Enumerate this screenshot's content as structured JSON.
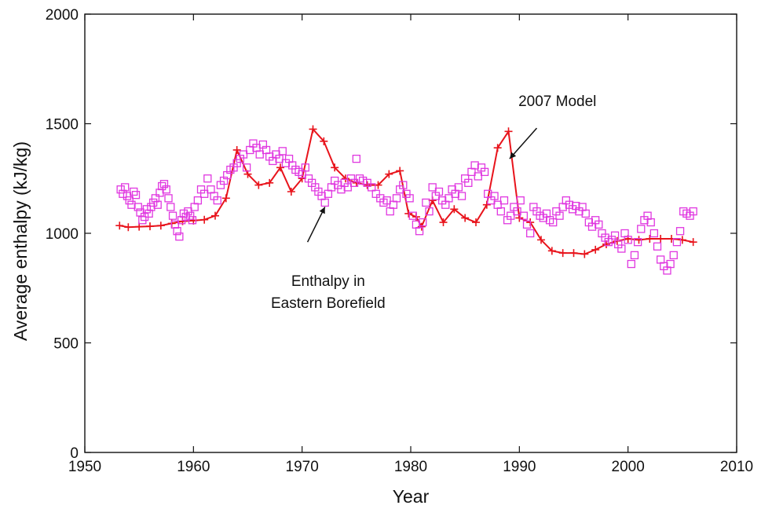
{
  "chart_data": {
    "type": "line",
    "title": "",
    "xlabel": "Year",
    "ylabel": "Average enthalpy (kJ/kg)",
    "xlim": [
      1950,
      2010
    ],
    "ylim": [
      0,
      2000
    ],
    "x_ticks": [
      1950,
      1960,
      1970,
      1980,
      1990,
      2000,
      2010
    ],
    "y_ticks": [
      0,
      500,
      1000,
      1500,
      2000
    ],
    "x_tick_labels": [
      "1950",
      "1960",
      "1970",
      "1980",
      "1990",
      "2000",
      "2010"
    ],
    "y_tick_labels": [
      "0",
      "500",
      "1000",
      "1500",
      "2000"
    ],
    "grid": false,
    "legend": "none",
    "series": [
      {
        "marker": "cross",
        "line": true,
        "color": "#e8131b",
        "points": [
          [
            1953.2,
            1035
          ],
          [
            1954,
            1028
          ],
          [
            1955,
            1030
          ],
          [
            1956,
            1032
          ],
          [
            1957,
            1035
          ],
          [
            1958,
            1045
          ],
          [
            1959,
            1055
          ],
          [
            1960,
            1058
          ],
          [
            1961,
            1062
          ],
          [
            1962,
            1080
          ],
          [
            1963,
            1160
          ],
          [
            1964,
            1380
          ],
          [
            1965,
            1270
          ],
          [
            1966,
            1220
          ],
          [
            1967,
            1230
          ],
          [
            1968,
            1300
          ],
          [
            1969,
            1190
          ],
          [
            1970,
            1250
          ],
          [
            1971,
            1475
          ],
          [
            1972,
            1420
          ],
          [
            1973,
            1300
          ],
          [
            1974,
            1250
          ],
          [
            1975,
            1230
          ],
          [
            1976,
            1220
          ],
          [
            1977,
            1220
          ],
          [
            1978,
            1270
          ],
          [
            1979,
            1285
          ],
          [
            1979.8,
            1090
          ],
          [
            1980.5,
            1075
          ],
          [
            1981,
            1030
          ],
          [
            1982,
            1150
          ],
          [
            1983,
            1050
          ],
          [
            1984,
            1110
          ],
          [
            1985,
            1070
          ],
          [
            1986,
            1050
          ],
          [
            1987,
            1130
          ],
          [
            1988,
            1390
          ],
          [
            1989,
            1465
          ],
          [
            1990,
            1070
          ],
          [
            1991,
            1050
          ],
          [
            1992,
            970
          ],
          [
            1993,
            920
          ],
          [
            1994,
            910
          ],
          [
            1995,
            910
          ],
          [
            1996,
            905
          ],
          [
            1997,
            925
          ],
          [
            1998,
            950
          ],
          [
            1999,
            965
          ],
          [
            2000,
            975
          ],
          [
            2001,
            970
          ],
          [
            2002,
            975
          ],
          [
            2003,
            975
          ],
          [
            2004,
            975
          ],
          [
            2005,
            970
          ],
          [
            2006,
            960
          ]
        ]
      },
      {
        "marker": "open-square",
        "line": false,
        "color": "#e038e0",
        "points": [
          [
            1953.3,
            1200
          ],
          [
            1953.5,
            1180
          ],
          [
            1953.7,
            1210
          ],
          [
            1953.9,
            1170
          ],
          [
            1954.1,
            1150
          ],
          [
            1954.3,
            1130
          ],
          [
            1954.5,
            1190
          ],
          [
            1954.7,
            1175
          ],
          [
            1954.9,
            1120
          ],
          [
            1955.1,
            1095
          ],
          [
            1955.3,
            1060
          ],
          [
            1955.5,
            1075
          ],
          [
            1955.7,
            1110
          ],
          [
            1955.9,
            1090
          ],
          [
            1956.1,
            1120
          ],
          [
            1956.3,
            1140
          ],
          [
            1956.5,
            1160
          ],
          [
            1956.7,
            1130
          ],
          [
            1956.9,
            1185
          ],
          [
            1957.1,
            1215
          ],
          [
            1957.3,
            1225
          ],
          [
            1957.5,
            1200
          ],
          [
            1957.7,
            1160
          ],
          [
            1957.9,
            1120
          ],
          [
            1958.1,
            1080
          ],
          [
            1958.3,
            1040
          ],
          [
            1958.5,
            1010
          ],
          [
            1958.7,
            985
          ],
          [
            1958.9,
            1060
          ],
          [
            1959.1,
            1090
          ],
          [
            1959.3,
            1075
          ],
          [
            1959.5,
            1100
          ],
          [
            1959.7,
            1080
          ],
          [
            1959.9,
            1060
          ],
          [
            1960.1,
            1120
          ],
          [
            1960.4,
            1150
          ],
          [
            1960.7,
            1200
          ],
          [
            1961,
            1180
          ],
          [
            1961.3,
            1250
          ],
          [
            1961.6,
            1200
          ],
          [
            1961.9,
            1170
          ],
          [
            1962.2,
            1150
          ],
          [
            1962.5,
            1220
          ],
          [
            1962.8,
            1240
          ],
          [
            1963.1,
            1265
          ],
          [
            1963.4,
            1290
          ],
          [
            1963.7,
            1300
          ],
          [
            1964,
            1320
          ],
          [
            1964.3,
            1340
          ],
          [
            1964.6,
            1360
          ],
          [
            1964.9,
            1300
          ],
          [
            1965.2,
            1380
          ],
          [
            1965.5,
            1410
          ],
          [
            1965.8,
            1390
          ],
          [
            1966.1,
            1360
          ],
          [
            1966.4,
            1405
          ],
          [
            1966.7,
            1380
          ],
          [
            1967,
            1350
          ],
          [
            1967.3,
            1330
          ],
          [
            1967.6,
            1360
          ],
          [
            1967.9,
            1340
          ],
          [
            1968.2,
            1375
          ],
          [
            1968.5,
            1320
          ],
          [
            1968.8,
            1340
          ],
          [
            1969.1,
            1310
          ],
          [
            1969.4,
            1290
          ],
          [
            1969.7,
            1280
          ],
          [
            1970,
            1270
          ],
          [
            1970.3,
            1300
          ],
          [
            1970.6,
            1250
          ],
          [
            1970.9,
            1230
          ],
          [
            1971.2,
            1210
          ],
          [
            1971.5,
            1190
          ],
          [
            1971.8,
            1170
          ],
          [
            1972.1,
            1140
          ],
          [
            1972.4,
            1180
          ],
          [
            1972.7,
            1210
          ],
          [
            1973,
            1240
          ],
          [
            1973.3,
            1220
          ],
          [
            1973.6,
            1200
          ],
          [
            1973.9,
            1230
          ],
          [
            1974.2,
            1210
          ],
          [
            1974.5,
            1250
          ],
          [
            1974.8,
            1230
          ],
          [
            1975,
            1340
          ],
          [
            1975.3,
            1250
          ],
          [
            1975.6,
            1240
          ],
          [
            1976,
            1230
          ],
          [
            1976.4,
            1210
          ],
          [
            1976.8,
            1180
          ],
          [
            1977.2,
            1160
          ],
          [
            1977.5,
            1140
          ],
          [
            1977.8,
            1150
          ],
          [
            1978.1,
            1100
          ],
          [
            1978.4,
            1130
          ],
          [
            1978.7,
            1160
          ],
          [
            1979,
            1200
          ],
          [
            1979.3,
            1220
          ],
          [
            1979.6,
            1180
          ],
          [
            1979.9,
            1160
          ],
          [
            1980.2,
            1080
          ],
          [
            1980.5,
            1040
          ],
          [
            1980.8,
            1010
          ],
          [
            1981.1,
            1050
          ],
          [
            1981.4,
            1140
          ],
          [
            1981.7,
            1100
          ],
          [
            1982,
            1210
          ],
          [
            1982.3,
            1170
          ],
          [
            1982.6,
            1190
          ],
          [
            1982.9,
            1150
          ],
          [
            1983.2,
            1130
          ],
          [
            1983.5,
            1160
          ],
          [
            1983.8,
            1200
          ],
          [
            1984.1,
            1180
          ],
          [
            1984.4,
            1210
          ],
          [
            1984.7,
            1170
          ],
          [
            1985,
            1250
          ],
          [
            1985.3,
            1230
          ],
          [
            1985.6,
            1280
          ],
          [
            1985.9,
            1310
          ],
          [
            1986.2,
            1260
          ],
          [
            1986.5,
            1300
          ],
          [
            1986.8,
            1280
          ],
          [
            1987.1,
            1180
          ],
          [
            1987.4,
            1150
          ],
          [
            1987.7,
            1170
          ],
          [
            1988,
            1130
          ],
          [
            1988.3,
            1100
          ],
          [
            1988.6,
            1150
          ],
          [
            1988.9,
            1060
          ],
          [
            1989.2,
            1080
          ],
          [
            1989.5,
            1120
          ],
          [
            1989.8,
            1100
          ],
          [
            1990.1,
            1150
          ],
          [
            1990.4,
            1080
          ],
          [
            1990.7,
            1040
          ],
          [
            1991,
            1000
          ],
          [
            1991.3,
            1120
          ],
          [
            1991.6,
            1100
          ],
          [
            1991.9,
            1080
          ],
          [
            1992.2,
            1070
          ],
          [
            1992.5,
            1090
          ],
          [
            1992.8,
            1060
          ],
          [
            1993.1,
            1050
          ],
          [
            1993.4,
            1100
          ],
          [
            1993.7,
            1080
          ],
          [
            1994,
            1120
          ],
          [
            1994.3,
            1150
          ],
          [
            1994.6,
            1130
          ],
          [
            1994.9,
            1110
          ],
          [
            1995.2,
            1125
          ],
          [
            1995.5,
            1100
          ],
          [
            1995.8,
            1120
          ],
          [
            1996.1,
            1090
          ],
          [
            1996.4,
            1050
          ],
          [
            1996.7,
            1030
          ],
          [
            1997,
            1060
          ],
          [
            1997.3,
            1040
          ],
          [
            1997.6,
            1000
          ],
          [
            1997.9,
            980
          ],
          [
            1998.2,
            960
          ],
          [
            1998.5,
            970
          ],
          [
            1998.8,
            990
          ],
          [
            1999.1,
            950
          ],
          [
            1999.4,
            930
          ],
          [
            1999.7,
            1000
          ],
          [
            2000,
            970
          ],
          [
            2000.3,
            860
          ],
          [
            2000.6,
            900
          ],
          [
            2000.9,
            960
          ],
          [
            2001.2,
            1020
          ],
          [
            2001.5,
            1060
          ],
          [
            2001.8,
            1080
          ],
          [
            2002.1,
            1050
          ],
          [
            2002.4,
            1000
          ],
          [
            2002.7,
            940
          ],
          [
            2003,
            880
          ],
          [
            2003.3,
            850
          ],
          [
            2003.6,
            830
          ],
          [
            2003.9,
            860
          ],
          [
            2004.2,
            900
          ],
          [
            2004.5,
            960
          ],
          [
            2004.8,
            1010
          ],
          [
            2005.1,
            1100
          ],
          [
            2005.4,
            1090
          ],
          [
            2005.7,
            1080
          ],
          [
            2006,
            1100
          ]
        ]
      }
    ],
    "annotations": [
      {
        "lines": [
          "2007 Model"
        ],
        "text_x": 1993.5,
        "text_y": 1580,
        "arrow_from": [
          1991.6,
          1480
        ],
        "arrow_to": [
          1989.1,
          1340
        ]
      },
      {
        "lines": [
          "Enthalpy in",
          "Eastern Borefield"
        ],
        "text_x": 1972.4,
        "text_y": 760,
        "arrow_from": [
          1970.5,
          960
        ],
        "arrow_to": [
          1972.1,
          1120
        ]
      }
    ]
  }
}
